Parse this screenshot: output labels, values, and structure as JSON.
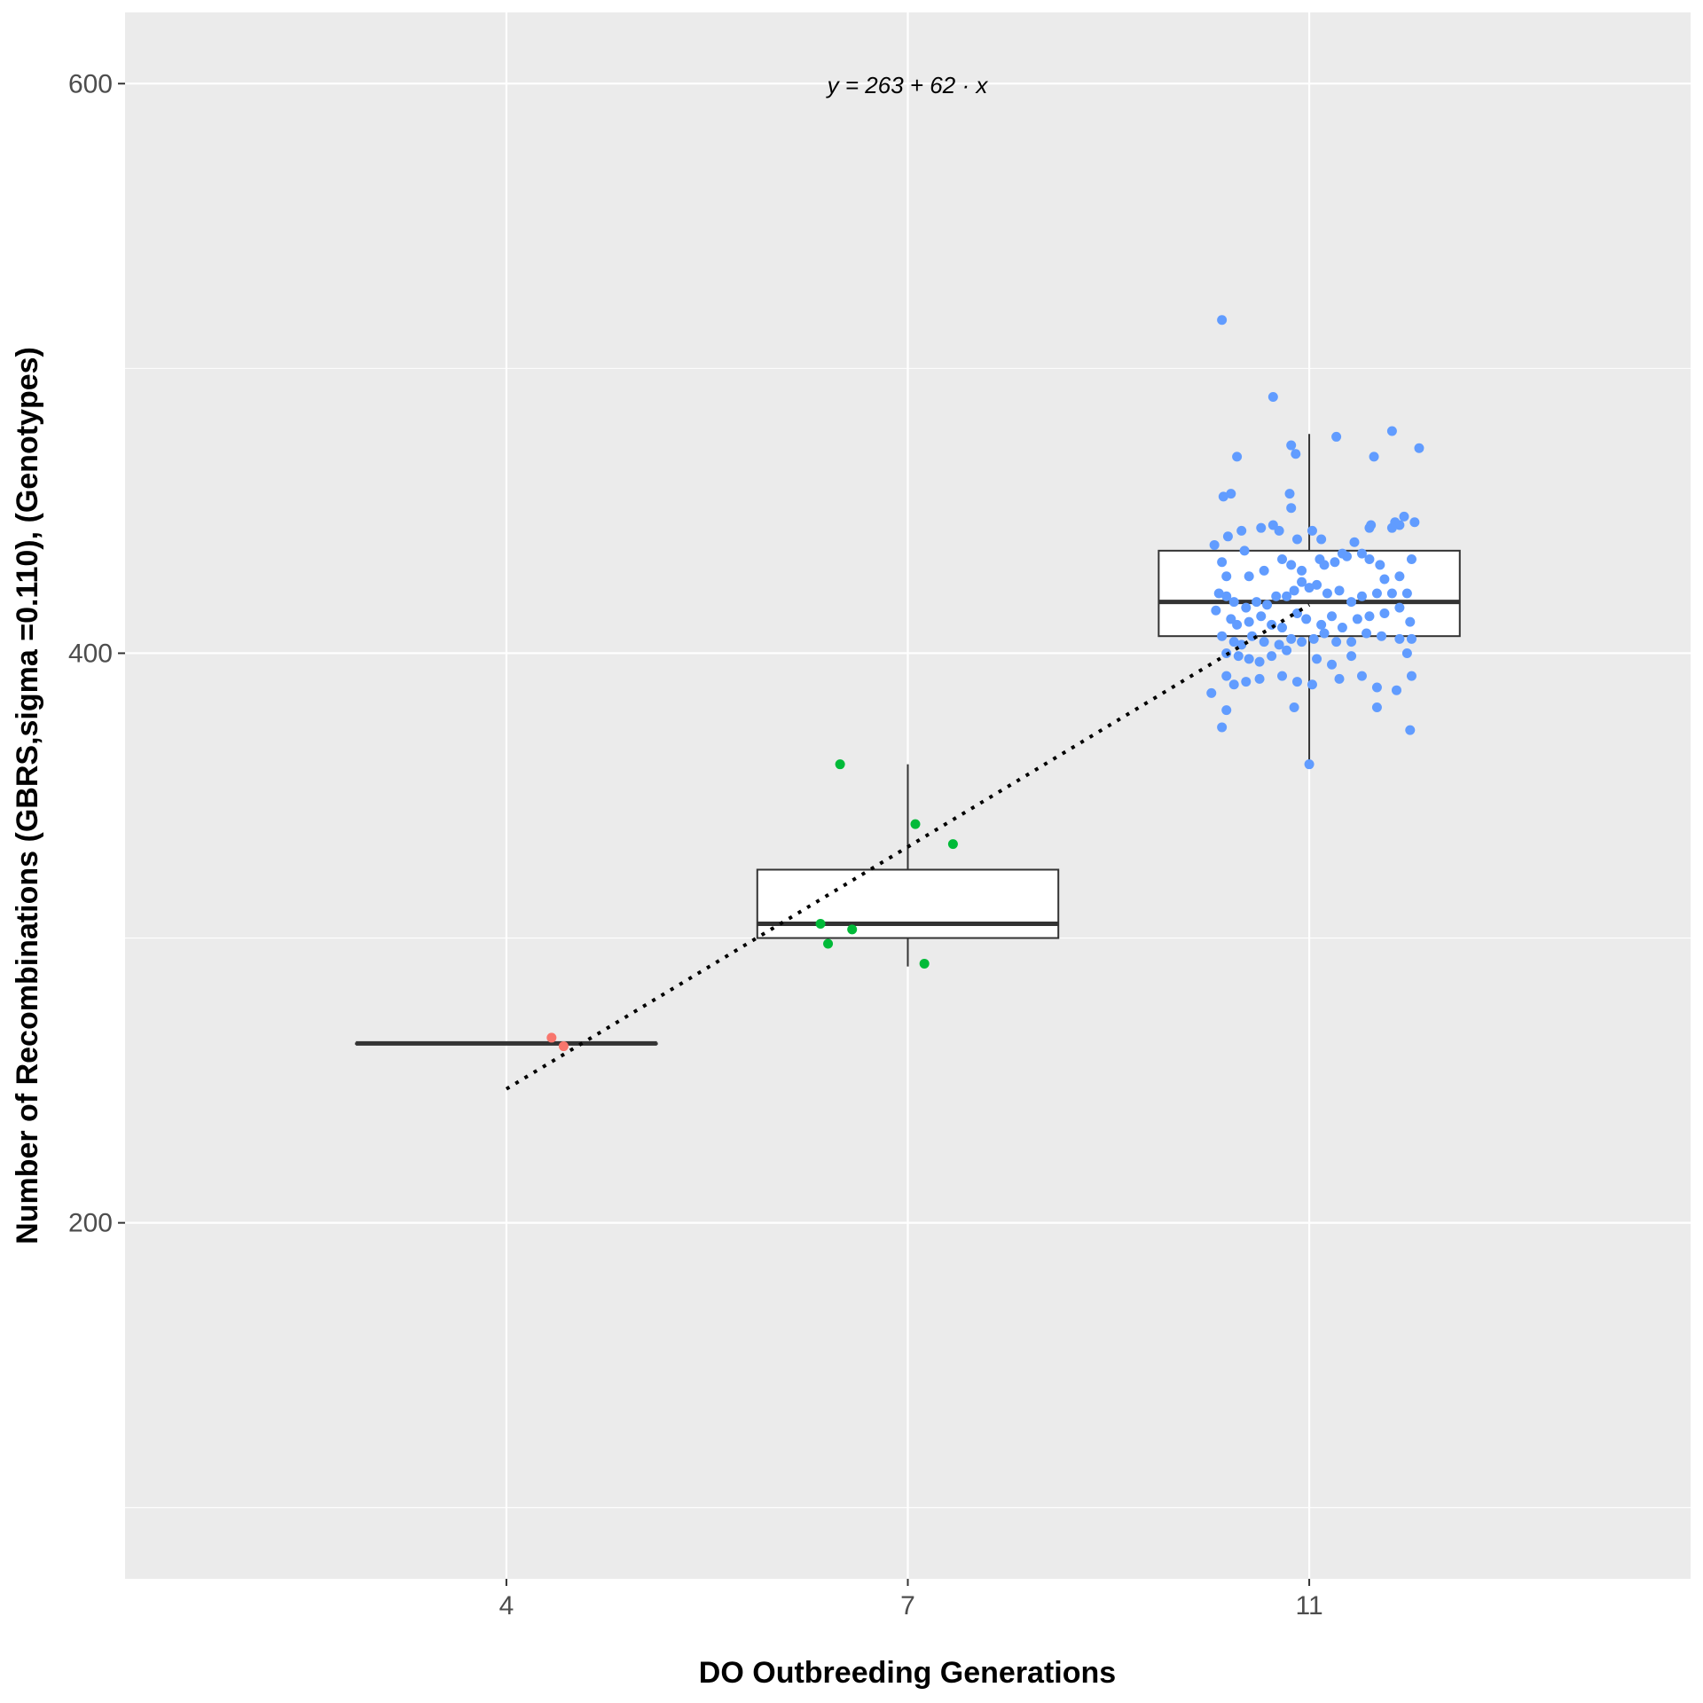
{
  "chart_data": {
    "type": "box",
    "xlabel": "DO Outbreeding Generations",
    "ylabel": "Number of Recombinations (GBRS,sigma =0.110), (Genotypes)",
    "annotation": "y = 263 + 62 · x",
    "categories": [
      "4",
      "7",
      "11"
    ],
    "y_ticks": [
      200,
      400,
      600
    ],
    "ylim": [
      75,
      625
    ],
    "grid": true,
    "boxes": [
      {
        "category": "4",
        "q1": 263,
        "median": 263,
        "q3": 263,
        "min": 263,
        "max": 263,
        "color": "#F8766D"
      },
      {
        "category": "7",
        "q1": 300,
        "median": 305,
        "q3": 324,
        "min": 290,
        "max": 361,
        "color": "#00BA38"
      },
      {
        "category": "11",
        "q1": 406,
        "median": 418,
        "q3": 436,
        "min": 361,
        "max": 477,
        "color": "#619CFF"
      }
    ],
    "points": {
      "4": [
        [
          0.3,
          265
        ],
        [
          0.38,
          262
        ]
      ],
      "7": [
        [
          -0.45,
          361
        ],
        [
          -0.58,
          305
        ],
        [
          -0.53,
          298
        ],
        [
          -0.37,
          303
        ],
        [
          0.05,
          340
        ],
        [
          0.3,
          333
        ],
        [
          0.11,
          291
        ]
      ],
      "11": [
        [
          -0.58,
          517
        ],
        [
          -0.24,
          490
        ],
        [
          -0.12,
          473
        ],
        [
          0.18,
          476
        ],
        [
          0.55,
          478
        ],
        [
          0.73,
          472
        ],
        [
          0.43,
          469
        ],
        [
          -0.48,
          469
        ],
        [
          -0.09,
          470
        ],
        [
          -0.57,
          455
        ],
        [
          -0.52,
          456
        ],
        [
          -0.13,
          456
        ],
        [
          -0.12,
          451
        ],
        [
          -0.2,
          443
        ],
        [
          -0.24,
          445
        ],
        [
          -0.32,
          444
        ],
        [
          0.02,
          443
        ],
        [
          0.4,
          444
        ],
        [
          0.41,
          445
        ],
        [
          0.63,
          448
        ],
        [
          0.57,
          446
        ],
        [
          -0.45,
          443
        ],
        [
          -0.54,
          441
        ],
        [
          -0.63,
          438
        ],
        [
          -0.43,
          436
        ],
        [
          -0.08,
          440
        ],
        [
          0.08,
          440
        ],
        [
          0.3,
          439
        ],
        [
          0.6,
          445
        ],
        [
          0.55,
          444
        ],
        [
          0.7,
          446
        ],
        [
          -0.58,
          432
        ],
        [
          -0.55,
          427
        ],
        [
          -0.4,
          427
        ],
        [
          -0.3,
          429
        ],
        [
          -0.18,
          433
        ],
        [
          -0.12,
          431
        ],
        [
          -0.05,
          429
        ],
        [
          0.07,
          433
        ],
        [
          0.1,
          431
        ],
        [
          0.17,
          432
        ],
        [
          0.22,
          435
        ],
        [
          0.25,
          434
        ],
        [
          0.35,
          435
        ],
        [
          0.4,
          433
        ],
        [
          0.47,
          431
        ],
        [
          0.5,
          426
        ],
        [
          0.6,
          427
        ],
        [
          0.68,
          433
        ],
        [
          -0.6,
          421
        ],
        [
          -0.55,
          420
        ],
        [
          -0.5,
          418
        ],
        [
          -0.42,
          416
        ],
        [
          -0.35,
          418
        ],
        [
          -0.28,
          417
        ],
        [
          -0.22,
          420
        ],
        [
          -0.15,
          420
        ],
        [
          -0.1,
          422
        ],
        [
          -0.05,
          425
        ],
        [
          0.0,
          423
        ],
        [
          0.05,
          424
        ],
        [
          0.12,
          421
        ],
        [
          0.2,
          422
        ],
        [
          0.28,
          418
        ],
        [
          0.35,
          420
        ],
        [
          0.45,
          421
        ],
        [
          0.55,
          421
        ],
        [
          0.65,
          421
        ],
        [
          -0.62,
          415
        ],
        [
          -0.52,
          412
        ],
        [
          -0.48,
          410
        ],
        [
          -0.4,
          411
        ],
        [
          -0.32,
          413
        ],
        [
          -0.25,
          410
        ],
        [
          -0.18,
          409
        ],
        [
          -0.08,
          414
        ],
        [
          -0.02,
          412
        ],
        [
          0.08,
          410
        ],
        [
          0.15,
          413
        ],
        [
          0.22,
          409
        ],
        [
          0.32,
          412
        ],
        [
          0.4,
          413
        ],
        [
          0.5,
          414
        ],
        [
          0.6,
          416
        ],
        [
          0.67,
          411
        ],
        [
          -0.58,
          406
        ],
        [
          -0.5,
          404
        ],
        [
          -0.45,
          403
        ],
        [
          -0.38,
          406
        ],
        [
          -0.3,
          404
        ],
        [
          -0.2,
          403
        ],
        [
          -0.12,
          405
        ],
        [
          -0.05,
          404
        ],
        [
          0.03,
          405
        ],
        [
          0.1,
          407
        ],
        [
          0.18,
          404
        ],
        [
          0.28,
          404
        ],
        [
          0.38,
          407
        ],
        [
          0.48,
          406
        ],
        [
          0.6,
          405
        ],
        [
          0.68,
          405
        ],
        [
          -0.55,
          400
        ],
        [
          -0.47,
          399
        ],
        [
          -0.4,
          398
        ],
        [
          -0.33,
          397
        ],
        [
          -0.25,
          399
        ],
        [
          -0.15,
          401
        ],
        [
          0.05,
          398
        ],
        [
          0.15,
          396
        ],
        [
          0.28,
          399
        ],
        [
          0.65,
          400
        ],
        [
          -0.65,
          386
        ],
        [
          -0.55,
          392
        ],
        [
          -0.5,
          389
        ],
        [
          -0.42,
          390
        ],
        [
          -0.33,
          391
        ],
        [
          -0.18,
          392
        ],
        [
          -0.08,
          390
        ],
        [
          0.02,
          389
        ],
        [
          0.2,
          391
        ],
        [
          0.35,
          392
        ],
        [
          0.45,
          388
        ],
        [
          0.58,
          387
        ],
        [
          0.68,
          392
        ],
        [
          -0.55,
          380
        ],
        [
          -0.1,
          381
        ],
        [
          0.45,
          381
        ],
        [
          -0.58,
          374
        ],
        [
          0.67,
          373
        ],
        [
          0.0,
          361
        ]
      ]
    },
    "trend_line": {
      "style": "dotted",
      "x_start": "4",
      "x_end": "11",
      "y_start": 247,
      "y_end": 417
    }
  }
}
